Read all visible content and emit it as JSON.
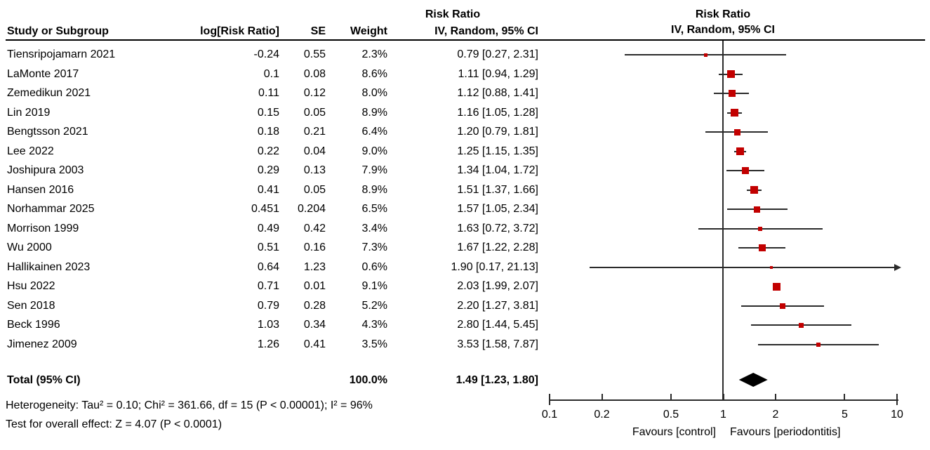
{
  "header": {
    "col_study": "Study or Subgroup",
    "col_log_rr": "log[Risk Ratio]",
    "col_se": "SE",
    "col_weight": "Weight",
    "effect_title": "Risk Ratio",
    "effect_subtitle": "IV, Random, 95% CI",
    "plot_title": "Risk Ratio",
    "plot_subtitle": "IV, Random, 95% CI"
  },
  "footer": {
    "heterogeneity": "Heterogeneity: Tau² = 0.10; Chi² = 361.66, df = 15 (P < 0.00001); I² = 96%",
    "overall_effect": "Test for overall effect: Z = 4.07 (P < 0.0001)"
  },
  "colors": {
    "marker": "#c20000",
    "line": "#2b2b2b",
    "diamond": "#000000",
    "text": "#000000"
  },
  "chart_data": {
    "type": "scatter",
    "subtype": "forest-plot",
    "effect_measure": "Risk Ratio",
    "model": "IV, Random, 95% CI",
    "axis": {
      "scale": "log",
      "min": 0.1,
      "max": 10,
      "ticks": [
        0.1,
        0.2,
        0.5,
        1,
        2,
        5,
        10
      ],
      "favours_left": "Favours [control]",
      "favours_right": "Favours [periodontitis]"
    },
    "studies": [
      {
        "name": "Tiensripojamarn 2021",
        "log_rr": "-0.24",
        "se": "0.55",
        "weight": "2.3%",
        "weight_pct": 2.3,
        "rr_ci": "0.79 [0.27, 2.31]",
        "rr": 0.79,
        "ci_low": 0.27,
        "ci_high": 2.31
      },
      {
        "name": "LaMonte 2017",
        "log_rr": "0.1",
        "se": "0.08",
        "weight": "8.6%",
        "weight_pct": 8.6,
        "rr_ci": "1.11 [0.94, 1.29]",
        "rr": 1.11,
        "ci_low": 0.94,
        "ci_high": 1.29
      },
      {
        "name": "Zemedikun 2021",
        "log_rr": "0.11",
        "se": "0.12",
        "weight": "8.0%",
        "weight_pct": 8.0,
        "rr_ci": "1.12 [0.88, 1.41]",
        "rr": 1.12,
        "ci_low": 0.88,
        "ci_high": 1.41
      },
      {
        "name": "Lin 2019",
        "log_rr": "0.15",
        "se": "0.05",
        "weight": "8.9%",
        "weight_pct": 8.9,
        "rr_ci": "1.16 [1.05, 1.28]",
        "rr": 1.16,
        "ci_low": 1.05,
        "ci_high": 1.28
      },
      {
        "name": "Bengtsson 2021",
        "log_rr": "0.18",
        "se": "0.21",
        "weight": "6.4%",
        "weight_pct": 6.4,
        "rr_ci": "1.20 [0.79, 1.81]",
        "rr": 1.2,
        "ci_low": 0.79,
        "ci_high": 1.81
      },
      {
        "name": "Lee 2022",
        "log_rr": "0.22",
        "se": "0.04",
        "weight": "9.0%",
        "weight_pct": 9.0,
        "rr_ci": "1.25 [1.15, 1.35]",
        "rr": 1.25,
        "ci_low": 1.15,
        "ci_high": 1.35
      },
      {
        "name": "Joshipura 2003",
        "log_rr": "0.29",
        "se": "0.13",
        "weight": "7.9%",
        "weight_pct": 7.9,
        "rr_ci": "1.34 [1.04, 1.72]",
        "rr": 1.34,
        "ci_low": 1.04,
        "ci_high": 1.72
      },
      {
        "name": "Hansen 2016",
        "log_rr": "0.41",
        "se": "0.05",
        "weight": "8.9%",
        "weight_pct": 8.9,
        "rr_ci": "1.51 [1.37, 1.66]",
        "rr": 1.51,
        "ci_low": 1.37,
        "ci_high": 1.66
      },
      {
        "name": "Norhammar 2025",
        "log_rr": "0.451",
        "se": "0.204",
        "weight": "6.5%",
        "weight_pct": 6.5,
        "rr_ci": "1.57 [1.05, 2.34]",
        "rr": 1.57,
        "ci_low": 1.05,
        "ci_high": 2.34
      },
      {
        "name": "Morrison 1999",
        "log_rr": "0.49",
        "se": "0.42",
        "weight": "3.4%",
        "weight_pct": 3.4,
        "rr_ci": "1.63 [0.72, 3.72]",
        "rr": 1.63,
        "ci_low": 0.72,
        "ci_high": 3.72
      },
      {
        "name": "Wu 2000",
        "log_rr": "0.51",
        "se": "0.16",
        "weight": "7.3%",
        "weight_pct": 7.3,
        "rr_ci": "1.67 [1.22, 2.28]",
        "rr": 1.67,
        "ci_low": 1.22,
        "ci_high": 2.28
      },
      {
        "name": "Hallikainen 2023",
        "log_rr": "0.64",
        "se": "1.23",
        "weight": "0.6%",
        "weight_pct": 0.6,
        "rr_ci": "1.90 [0.17, 21.13]",
        "rr": 1.9,
        "ci_low": 0.17,
        "ci_high": 21.13
      },
      {
        "name": "Hsu 2022",
        "log_rr": "0.71",
        "se": "0.01",
        "weight": "9.1%",
        "weight_pct": 9.1,
        "rr_ci": "2.03 [1.99, 2.07]",
        "rr": 2.03,
        "ci_low": 1.99,
        "ci_high": 2.07
      },
      {
        "name": "Sen 2018",
        "log_rr": "0.79",
        "se": "0.28",
        "weight": "5.2%",
        "weight_pct": 5.2,
        "rr_ci": "2.20 [1.27, 3.81]",
        "rr": 2.2,
        "ci_low": 1.27,
        "ci_high": 3.81
      },
      {
        "name": "Beck 1996",
        "log_rr": "1.03",
        "se": "0.34",
        "weight": "4.3%",
        "weight_pct": 4.3,
        "rr_ci": "2.80 [1.44, 5.45]",
        "rr": 2.8,
        "ci_low": 1.44,
        "ci_high": 5.45
      },
      {
        "name": "Jimenez 2009",
        "log_rr": "1.26",
        "se": "0.41",
        "weight": "3.5%",
        "weight_pct": 3.5,
        "rr_ci": "3.53 [1.58, 7.87]",
        "rr": 3.53,
        "ci_low": 1.58,
        "ci_high": 7.87
      }
    ],
    "total": {
      "label": "Total (95% CI)",
      "weight": "100.0%",
      "rr_ci": "1.49 [1.23, 1.80]",
      "rr": 1.49,
      "ci_low": 1.23,
      "ci_high": 1.8
    }
  }
}
